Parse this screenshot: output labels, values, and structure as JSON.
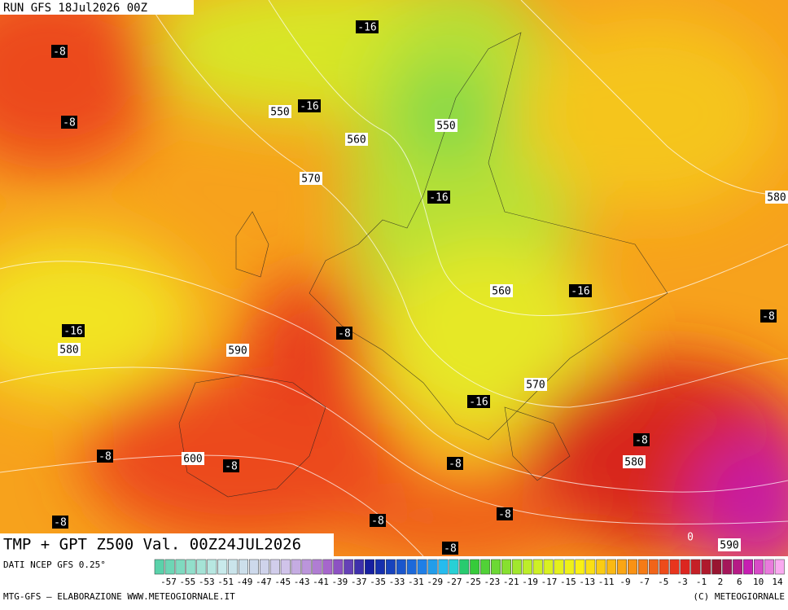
{
  "header": {
    "run": "RUN GFS 18Jul2026 00Z"
  },
  "map": {
    "labels": [
      -16,
      -8,
      550,
      -16,
      -8,
      550,
      560,
      570,
      -16,
      580,
      560,
      -16,
      -8,
      -16,
      -8,
      580,
      590,
      570,
      -16,
      -8,
      -8,
      600,
      -8,
      580,
      -8,
      -8,
      -8,
      -8,
      0,
      590,
      -8
    ]
  },
  "title": "TMP + GPT Z500 Val. 00Z24JUL2026",
  "source": "DATI NCEP GFS 0.25°",
  "colorbar": {
    "labels": [
      -57,
      -55,
      -53,
      -51,
      -49,
      -47,
      -45,
      -43,
      -41,
      -39,
      -37,
      -35,
      -33,
      -31,
      -29,
      -27,
      -25,
      -23,
      -21,
      -19,
      -17,
      -15,
      -13,
      -11,
      -9,
      -7,
      -5,
      -3,
      -1,
      2,
      6,
      10,
      14
    ]
  },
  "footer": {
    "left": "MTG-GFS — ELABORAZIONE WWW.METEOGIORNALE.IT",
    "right": "(C) METEOGIORNALE"
  }
}
